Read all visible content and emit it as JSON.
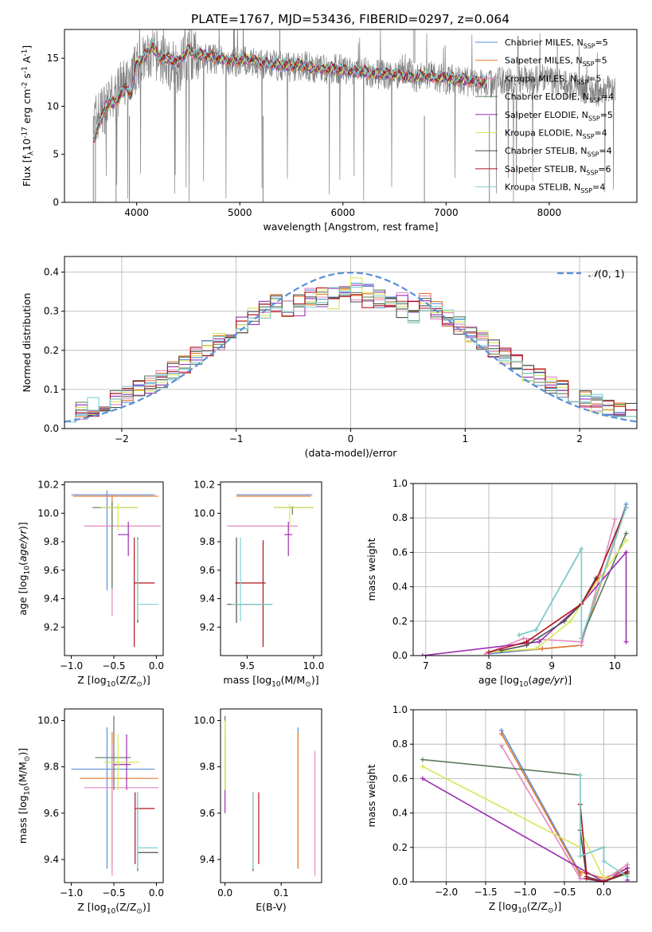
{
  "title": "PLATE=1767, MJD=53436, FIBERID=0297, z=0.064",
  "colors": {
    "Chabrier MILES": "#5b8fd8",
    "Salpeter MILES": "#e87a2b",
    "Kroupa MILES": "#e389c0",
    "Chabrier ELODIE": "#5a7a5a",
    "Salpeter ELODIE": "#9b2fb0",
    "Kroupa ELODIE": "#d6e85a",
    "Chabrier STELIB": "#4d4d4d",
    "Salpeter STELIB": "#b0121b",
    "Kroupa STELIB": "#7fd1d1"
  },
  "chart_data": [
    {
      "id": "spectrum",
      "type": "line",
      "xlabel": "wavelength [Angstrom, rest frame]",
      "ylabel": "Flux [f$_\\lambda$10$^{-17}$ erg cm$^{-2}$ s$^{-1}$ A$^{-1}$]",
      "xlim": [
        3300,
        8850
      ],
      "ylim": [
        0,
        18
      ],
      "xticks": [
        4000,
        5000,
        6000,
        7000,
        8000
      ],
      "yticks": [
        0,
        5,
        10,
        15
      ],
      "grid": false,
      "legend": "top-right",
      "legend_entries": [
        "Chabrier MILES, N$_{SSP}$=5",
        "Salpeter MILES, N$_{SSP}$=5",
        "Kroupa MILES, N$_{SSP}$=5",
        "Chabrier ELODIE, N$_{SSP}$=4",
        "Salpeter ELODIE, N$_{SSP}$=5",
        "Kroupa ELODIE, N$_{SSP}$=4",
        "Chabrier STELIB, N$_{SSP}$=4",
        "Salpeter STELIB, N$_{SSP}$=6",
        "Kroupa STELIB, N$_{SSP}$=4"
      ],
      "data_series": {
        "name": "data",
        "color": "#808080",
        "x": [
          3580,
          3700,
          3800,
          3900,
          4000,
          4100,
          4200,
          4300,
          4400,
          4500,
          4600,
          4700,
          4800,
          4900,
          5000,
          5100,
          5200,
          5300,
          5400,
          5500,
          5600,
          5700,
          5800,
          5900,
          6000,
          6100,
          6200,
          6300,
          6400,
          6500,
          6600,
          6700,
          6800,
          6900,
          7000,
          7100,
          7200,
          7300,
          7400,
          7500,
          7600,
          7700,
          7800,
          7900,
          8000,
          8100,
          8200,
          8300,
          8400,
          8500,
          8600,
          8640
        ],
        "y": [
          8.5,
          10,
          11,
          12.5,
          14,
          15,
          15.3,
          14.5,
          14,
          15.5,
          15.2,
          15,
          14.8,
          14.5,
          14.6,
          14.8,
          14.3,
          14.3,
          14.2,
          14.1,
          14.3,
          14.0,
          13.8,
          13.9,
          13.8,
          13.5,
          13.6,
          13.4,
          13.3,
          13.2,
          14.0,
          13.0,
          13.3,
          13.1,
          12.8,
          12.8,
          12.6,
          12.5,
          12.3,
          12.6,
          12.4,
          12.8,
          12.6,
          12.9,
          12.7,
          12.3,
          12.0,
          11.9,
          11.6,
          11.5,
          11.8,
          12.0
        ]
      },
      "model_x": [
        3580,
        3650,
        3700,
        3800,
        3900,
        3950,
        4000,
        4050,
        4100,
        4150,
        4200,
        4300,
        4400,
        4500,
        4600,
        4700,
        4800,
        4900,
        5000,
        5100,
        5200,
        5300,
        5400,
        5500,
        5600,
        5700,
        5800,
        5900,
        6000,
        6100,
        6200,
        6300,
        6400,
        6500,
        6600,
        6700,
        6800,
        6900,
        7000,
        7100,
        7200,
        7300,
        7400
      ],
      "model_y": [
        6.5,
        8.5,
        10,
        10.5,
        12,
        11,
        14.5,
        14.8,
        15.5,
        16.5,
        15.2,
        15.0,
        14.5,
        15.8,
        15.4,
        15.2,
        15.0,
        14.7,
        14.8,
        14.9,
        14.5,
        14.4,
        14.3,
        14.2,
        14.3,
        14.0,
        13.9,
        13.9,
        13.8,
        13.6,
        13.6,
        13.4,
        13.4,
        13.3,
        13.1,
        13.0,
        13.2,
        13.0,
        12.9,
        12.8,
        12.7,
        12.6,
        12.5
      ]
    },
    {
      "id": "residuals",
      "type": "line",
      "xlabel": "(data-model)/error",
      "ylabel": "Normed distribution",
      "xlim": [
        -2.5,
        2.5
      ],
      "ylim": [
        0,
        0.44
      ],
      "xticks": [
        -2,
        -1,
        0,
        1,
        2
      ],
      "yticks": [
        0.0,
        0.1,
        0.2,
        0.3,
        0.4
      ],
      "grid": true,
      "legend": "top-right",
      "legend_entries": [
        "$\\mathcal{N}(0,1)$"
      ],
      "bin_width": 0.1,
      "reference_curve": {
        "name": "$\\mathcal{N}(0,1)$",
        "color": "#5b8fd8",
        "style": "dashed"
      }
    },
    {
      "id": "age_vs_Z",
      "type": "scatter",
      "xlabel": "Z [log$_{10}$(Z/Z$_\\odot$)]",
      "ylabel": "age  [log$_{10}$($age/yr$)]",
      "xlim": [
        -1.08,
        0.08
      ],
      "ylim": [
        9.0,
        10.22
      ],
      "xticks": [
        -1.0,
        -0.5,
        0.0
      ],
      "yticks": [
        9.2,
        9.4,
        9.6,
        9.8,
        10.0,
        10.2
      ],
      "grid": false,
      "points": [
        {
          "model": "Chabrier MILES",
          "x": -0.58,
          "y": 10.13,
          "xlo": -1.0,
          "xhi": -0.02,
          "ylo": 9.46,
          "yhi": 10.16
        },
        {
          "model": "Salpeter MILES",
          "x": -0.52,
          "y": 10.12,
          "xlo": -0.98,
          "xhi": 0.02,
          "ylo": 9.5,
          "yhi": 10.13
        },
        {
          "model": "Kroupa MILES",
          "x": -0.52,
          "y": 9.91,
          "xlo": -0.85,
          "xhi": 0.05,
          "ylo": 9.28,
          "yhi": 10.05
        },
        {
          "model": "Chabrier ELODIE",
          "x": -0.52,
          "y": 10.04,
          "xlo": -0.75,
          "xhi": -0.22,
          "ylo": 9.47,
          "yhi": 10.08
        },
        {
          "model": "Salpeter ELODIE",
          "x": -0.33,
          "y": 9.85,
          "xlo": -0.45,
          "xhi": -0.32,
          "ylo": 9.7,
          "yhi": 9.94
        },
        {
          "model": "Kroupa ELODIE",
          "x": -0.45,
          "y": 10.04,
          "xlo": -0.65,
          "xhi": -0.22,
          "ylo": 9.88,
          "yhi": 10.07
        },
        {
          "model": "Chabrier STELIB",
          "x": -0.22,
          "y": 9.55,
          "xlo": -0.22,
          "xhi": -0.22,
          "ylo": 9.23,
          "yhi": 9.83
        },
        {
          "model": "Salpeter STELIB",
          "x": -0.26,
          "y": 9.51,
          "xlo": -0.26,
          "xhi": -0.02,
          "ylo": 9.06,
          "yhi": 9.83
        },
        {
          "model": "Kroupa STELIB",
          "x": -0.22,
          "y": 9.36,
          "xlo": -0.22,
          "xhi": 0.02,
          "ylo": 9.25,
          "yhi": 9.82
        }
      ]
    },
    {
      "id": "age_vs_mass",
      "type": "scatter",
      "xlabel": "mass [log$_{10}$(M/M$_\\odot$)]",
      "ylabel": "",
      "xlim": [
        9.3,
        10.06
      ],
      "ylim": [
        9.0,
        10.22
      ],
      "xticks": [
        9.5,
        10.0
      ],
      "yticks": [
        9.2,
        9.4,
        9.6,
        9.8,
        10.0,
        10.2
      ],
      "grid": false,
      "points": [
        {
          "model": "Chabrier MILES",
          "x": 9.72,
          "y": 10.13,
          "xlo": 9.42,
          "xhi": 9.99,
          "ylo": 10.13,
          "yhi": 10.13
        },
        {
          "model": "Salpeter MILES",
          "x": 9.7,
          "y": 10.12,
          "xlo": 9.42,
          "xhi": 9.98,
          "ylo": 10.12,
          "yhi": 10.12
        },
        {
          "model": "Kroupa MILES",
          "x": 9.71,
          "y": 9.91,
          "xlo": 9.35,
          "xhi": 9.88,
          "ylo": 9.91,
          "yhi": 9.91
        },
        {
          "model": "Chabrier ELODIE",
          "x": 9.84,
          "y": 10.04,
          "xlo": 9.7,
          "xhi": 10.0,
          "ylo": 9.99,
          "yhi": 10.05
        },
        {
          "model": "Salpeter ELODIE",
          "x": 9.81,
          "y": 9.85,
          "xlo": 9.78,
          "xhi": 9.84,
          "ylo": 9.7,
          "yhi": 9.94
        },
        {
          "model": "Kroupa ELODIE",
          "x": 9.82,
          "y": 10.04,
          "xlo": 9.7,
          "xhi": 10.0,
          "ylo": 9.88,
          "yhi": 10.07
        },
        {
          "model": "Chabrier STELIB",
          "x": 9.42,
          "y": 9.36,
          "xlo": 9.35,
          "xhi": 9.69,
          "ylo": 9.23,
          "yhi": 9.83
        },
        {
          "model": "Salpeter STELIB",
          "x": 9.62,
          "y": 9.51,
          "xlo": 9.41,
          "xhi": 9.64,
          "ylo": 9.06,
          "yhi": 9.81
        },
        {
          "model": "Kroupa STELIB",
          "x": 9.45,
          "y": 9.36,
          "xlo": 9.38,
          "xhi": 9.69,
          "ylo": 9.24,
          "yhi": 9.83
        }
      ]
    },
    {
      "id": "weight_vs_age",
      "type": "line",
      "xlabel": "age  [log$_{10}$($age/yr$)]",
      "ylabel": "mass weight",
      "xlim": [
        6.8,
        10.35
      ],
      "ylim": [
        0,
        1.0
      ],
      "xticks": [
        7,
        8,
        9,
        10
      ],
      "yticks": [
        0.0,
        0.2,
        0.4,
        0.6,
        0.8,
        1.0
      ],
      "grid": true,
      "series": [
        {
          "name": "Chabrier MILES",
          "x": [
            8.0,
            8.85,
            9.47,
            9.47,
            10.18
          ],
          "y": [
            0.01,
            0.04,
            0.06,
            0.08,
            0.88
          ]
        },
        {
          "name": "Salpeter MILES",
          "x": [
            8.0,
            8.85,
            9.47,
            9.47,
            10.18
          ],
          "y": [
            0.02,
            0.04,
            0.06,
            0.08,
            0.86
          ]
        },
        {
          "name": "Kroupa MILES",
          "x": [
            7.95,
            8.55,
            9.47,
            9.47,
            10.0
          ],
          "y": [
            0.01,
            0.1,
            0.08,
            0.06,
            0.79
          ]
        },
        {
          "name": "Chabrier ELODIE",
          "x": [
            8.48,
            8.75,
            9.47,
            9.47,
            10.18
          ],
          "y": [
            0.12,
            0.15,
            0.62,
            0.1,
            0.71
          ]
        },
        {
          "name": "Salpeter ELODIE",
          "x": [
            6.95,
            8.8,
            9.47,
            10.18,
            10.18
          ],
          "y": [
            0.0,
            0.08,
            0.3,
            0.6,
            0.08
          ]
        },
        {
          "name": "Kroupa ELODIE",
          "x": [
            8.0,
            8.75,
            9.3,
            9.47,
            10.18
          ],
          "y": [
            0.02,
            0.04,
            0.2,
            0.3,
            0.67
          ]
        },
        {
          "name": "Chabrier STELIB",
          "x": [
            8.2,
            8.6,
            9.2,
            9.47,
            9.7
          ],
          "y": [
            0.03,
            0.06,
            0.2,
            0.3,
            0.45
          ]
        },
        {
          "name": "Salpeter STELIB",
          "x": [
            8.0,
            8.6,
            9.47,
            9.72,
            10.18
          ],
          "y": [
            0.02,
            0.08,
            0.3,
            0.45,
            0.86
          ]
        },
        {
          "name": "Kroupa STELIB",
          "x": [
            8.48,
            8.75,
            9.47,
            9.47,
            10.18
          ],
          "y": [
            0.12,
            0.15,
            0.62,
            0.1,
            0.86
          ]
        }
      ]
    },
    {
      "id": "mass_vs_Z",
      "type": "scatter",
      "xlabel": "Z [log$_{10}$(Z/Z$_\\odot$)]",
      "ylabel": "mass [log$_{10}$(M/M$_\\odot$)]",
      "xlim": [
        -1.08,
        0.08
      ],
      "ylim": [
        9.3,
        10.05
      ],
      "xticks": [
        -1.0,
        -0.5,
        0.0
      ],
      "yticks": [
        9.4,
        9.6,
        9.8,
        10.0
      ],
      "grid": false,
      "points": [
        {
          "model": "Chabrier MILES",
          "x": -0.58,
          "y": 9.79,
          "xlo": -1.0,
          "xhi": -0.02,
          "ylo": 9.36,
          "yhi": 9.97
        },
        {
          "model": "Salpeter MILES",
          "x": -0.52,
          "y": 9.75,
          "xlo": -0.9,
          "xhi": 0.02,
          "ylo": 9.36,
          "yhi": 9.95
        },
        {
          "model": "Kroupa MILES",
          "x": -0.52,
          "y": 9.71,
          "xlo": -0.85,
          "xhi": 0.02,
          "ylo": 9.33,
          "yhi": 9.9
        },
        {
          "model": "Chabrier ELODIE",
          "x": -0.5,
          "y": 9.84,
          "xlo": -0.72,
          "xhi": -0.3,
          "ylo": 9.7,
          "yhi": 10.02
        },
        {
          "model": "Salpeter ELODIE",
          "x": -0.35,
          "y": 9.81,
          "xlo": -0.5,
          "xhi": -0.3,
          "ylo": 9.7,
          "yhi": 9.94
        },
        {
          "model": "Kroupa ELODIE",
          "x": -0.45,
          "y": 9.82,
          "xlo": -0.62,
          "xhi": -0.2,
          "ylo": 9.7,
          "yhi": 9.94
        },
        {
          "model": "Chabrier STELIB",
          "x": -0.22,
          "y": 9.43,
          "xlo": -0.22,
          "xhi": 0.02,
          "ylo": 9.35,
          "yhi": 9.69
        },
        {
          "model": "Salpeter STELIB",
          "x": -0.25,
          "y": 9.62,
          "xlo": -0.25,
          "xhi": -0.02,
          "ylo": 9.38,
          "yhi": 9.69
        },
        {
          "model": "Kroupa STELIB",
          "x": -0.22,
          "y": 9.45,
          "xlo": -0.22,
          "xhi": 0.02,
          "ylo": 9.36,
          "yhi": 9.69
        }
      ]
    },
    {
      "id": "mass_vs_ebv",
      "type": "scatter",
      "xlabel": "E(B-V)",
      "ylabel": "",
      "xlim": [
        -0.008,
        0.172
      ],
      "ylim": [
        9.3,
        10.05
      ],
      "xticks": [
        0.0,
        0.1
      ],
      "yticks": [
        9.4,
        9.6,
        9.8,
        10.0
      ],
      "grid": false,
      "points": [
        {
          "model": "Chabrier MILES",
          "x": 0.13,
          "y": 9.79,
          "ylo": 9.36,
          "yhi": 9.97
        },
        {
          "model": "Salpeter MILES",
          "x": 0.13,
          "y": 9.75,
          "ylo": 9.36,
          "yhi": 9.95
        },
        {
          "model": "Kroupa MILES",
          "x": 0.16,
          "y": 9.71,
          "ylo": 9.33,
          "yhi": 9.87
        },
        {
          "model": "Chabrier ELODIE",
          "x": 0.0,
          "y": 9.84,
          "ylo": 9.7,
          "yhi": 10.02
        },
        {
          "model": "Salpeter ELODIE",
          "x": 0.0,
          "y": 9.81,
          "ylo": 9.6,
          "yhi": 9.94
        },
        {
          "model": "Kroupa ELODIE",
          "x": 0.0,
          "y": 9.82,
          "ylo": 9.7,
          "yhi": 10.0
        },
        {
          "model": "Chabrier STELIB",
          "x": 0.05,
          "y": 9.43,
          "ylo": 9.35,
          "yhi": 9.69
        },
        {
          "model": "Salpeter STELIB",
          "x": 0.06,
          "y": 9.62,
          "ylo": 9.38,
          "yhi": 9.69
        },
        {
          "model": "Kroupa STELIB",
          "x": 0.05,
          "y": 9.45,
          "ylo": 9.36,
          "yhi": 9.69
        }
      ]
    },
    {
      "id": "weight_vs_Z",
      "type": "line",
      "xlabel": "Z [log$_{10}$(Z/Z$_\\odot$)]",
      "ylabel": "mass weight",
      "xlim": [
        -2.42,
        0.42
      ],
      "ylim": [
        0,
        1.0
      ],
      "xticks": [
        -2.0,
        -1.5,
        -1.0,
        -0.5,
        0.0
      ],
      "yticks": [
        0.0,
        0.2,
        0.4,
        0.6,
        0.8,
        1.0
      ],
      "grid": true,
      "series": [
        {
          "name": "Chabrier MILES",
          "x": [
            -1.3,
            -0.3,
            -0.3,
            0.0,
            0.3
          ],
          "y": [
            0.88,
            0.05,
            0.02,
            0.0,
            0.06
          ]
        },
        {
          "name": "Salpeter MILES",
          "x": [
            -1.3,
            -0.3,
            -0.3,
            0.0,
            0.3
          ],
          "y": [
            0.86,
            0.04,
            0.06,
            0.02,
            0.08
          ]
        },
        {
          "name": "Kroupa MILES",
          "x": [
            -1.3,
            -0.3,
            0.0,
            0.3,
            0.3
          ],
          "y": [
            0.79,
            0.02,
            0.01,
            0.1,
            0.05
          ]
        },
        {
          "name": "Chabrier ELODIE",
          "x": [
            -2.3,
            -0.3,
            -0.3,
            0.0,
            0.0
          ],
          "y": [
            0.71,
            0.62,
            0.15,
            0.2,
            0.12
          ]
        },
        {
          "name": "Salpeter ELODIE",
          "x": [
            -2.3,
            0.0,
            0.3,
            0.3
          ],
          "y": [
            0.6,
            0.0,
            0.08,
            0.01
          ]
        },
        {
          "name": "Kroupa ELODIE",
          "x": [
            -2.3,
            -0.3,
            -0.3,
            0.0,
            0.3
          ],
          "y": [
            0.67,
            0.2,
            0.3,
            0.02,
            0.04
          ]
        },
        {
          "name": "Chabrier STELIB",
          "x": [
            -0.3,
            -0.3,
            -0.22,
            0.0,
            0.3
          ],
          "y": [
            0.45,
            0.3,
            0.03,
            0.0,
            0.05
          ]
        },
        {
          "name": "Salpeter STELIB",
          "x": [
            -0.3,
            -0.22,
            -0.22,
            0.0,
            0.3
          ],
          "y": [
            0.45,
            0.05,
            0.02,
            0.0,
            0.06
          ]
        },
        {
          "name": "Kroupa STELIB",
          "x": [
            -0.3,
            -0.3,
            0.0,
            0.0,
            0.3
          ],
          "y": [
            0.62,
            0.15,
            0.2,
            0.12,
            0.03
          ]
        }
      ]
    }
  ]
}
